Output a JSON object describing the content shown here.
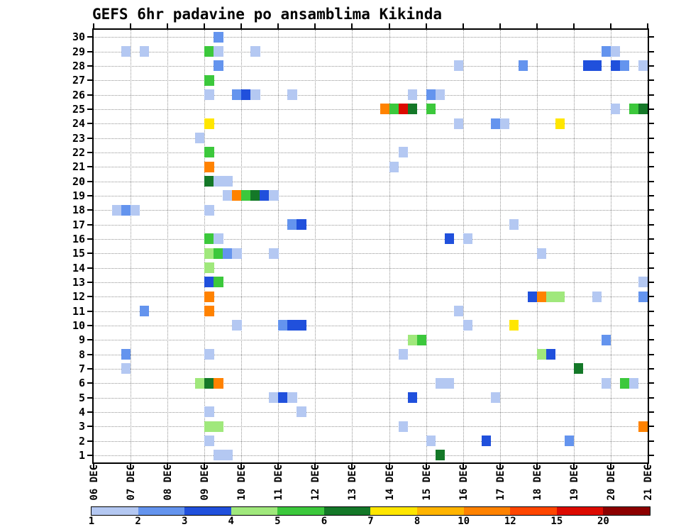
{
  "title": "GEFS 6hr padavine po ansamblima Kikinda",
  "chart_data": {
    "type": "heatmap",
    "title": "GEFS 6hr padavine po ansamblima Kikinda",
    "description": "6-hourly precipitation per GEFS ensemble member for Kikinda; x = time (6hr steps), y = ensemble member 1-30, color = precipitation bin",
    "x_labels": [
      "06 DEC",
      "07 DEC",
      "08 DEC",
      "09 DEC",
      "10 DEC",
      "11 DEC",
      "12 DEC",
      "13 DEC",
      "14 DEC",
      "15 DEC",
      "16 DEC",
      "17 DEC",
      "18 DEC",
      "19 DEC",
      "20 DEC",
      "21 DEC"
    ],
    "x_steps_per_day": 4,
    "y_min": 1,
    "y_max": 30,
    "grid": "dotted",
    "legend": {
      "tick_labels": [
        "1",
        "2",
        "3",
        "4",
        "5",
        "6",
        "7",
        "8",
        "10",
        "12",
        "15",
        "20"
      ],
      "colors": [
        "#b4c8f2",
        "#6494ee",
        "#2050dc",
        "#a0e87c",
        "#3cc83c",
        "#147828",
        "#ffe600",
        "#ffb400",
        "#ff8200",
        "#ff4600",
        "#dc0a00",
        "#8c0000"
      ]
    },
    "cell_encoding": "[six_hour_step_from_06DEC, ensemble_member, color_level_1_to_12]",
    "cells": [
      [
        13,
        30,
        2
      ],
      [
        3,
        29,
        1
      ],
      [
        5,
        29,
        1
      ],
      [
        12,
        29,
        5
      ],
      [
        13,
        29,
        1
      ],
      [
        17,
        29,
        1
      ],
      [
        55,
        29,
        2
      ],
      [
        56,
        29,
        1
      ],
      [
        13,
        28,
        2
      ],
      [
        39,
        28,
        1
      ],
      [
        46,
        28,
        2
      ],
      [
        53,
        28,
        3
      ],
      [
        54,
        28,
        3
      ],
      [
        56,
        28,
        3
      ],
      [
        57,
        28,
        2
      ],
      [
        59,
        28,
        1
      ],
      [
        12,
        27,
        5
      ],
      [
        12,
        26,
        1
      ],
      [
        15,
        26,
        2
      ],
      [
        16,
        26,
        3
      ],
      [
        17,
        26,
        1
      ],
      [
        21,
        26,
        1
      ],
      [
        34,
        26,
        1
      ],
      [
        36,
        26,
        2
      ],
      [
        37,
        26,
        1
      ],
      [
        31,
        25,
        9
      ],
      [
        32,
        25,
        5
      ],
      [
        33,
        25,
        11
      ],
      [
        34,
        25,
        6
      ],
      [
        36,
        25,
        5
      ],
      [
        56,
        25,
        1
      ],
      [
        58,
        25,
        5
      ],
      [
        59,
        25,
        6
      ],
      [
        12,
        24,
        7
      ],
      [
        39,
        24,
        1
      ],
      [
        43,
        24,
        2
      ],
      [
        44,
        24,
        1
      ],
      [
        50,
        24,
        7
      ],
      [
        11,
        23,
        1
      ],
      [
        12,
        22,
        5
      ],
      [
        33,
        22,
        1
      ],
      [
        12,
        21,
        9
      ],
      [
        32,
        21,
        1
      ],
      [
        12,
        20,
        6
      ],
      [
        13,
        20,
        1
      ],
      [
        14,
        20,
        1
      ],
      [
        14,
        19,
        1
      ],
      [
        15,
        19,
        9
      ],
      [
        16,
        19,
        5
      ],
      [
        17,
        19,
        6
      ],
      [
        18,
        19,
        3
      ],
      [
        19,
        19,
        1
      ],
      [
        2,
        18,
        1
      ],
      [
        3,
        18,
        2
      ],
      [
        4,
        18,
        1
      ],
      [
        12,
        18,
        1
      ],
      [
        21,
        17,
        2
      ],
      [
        22,
        17,
        3
      ],
      [
        45,
        17,
        1
      ],
      [
        12,
        16,
        5
      ],
      [
        13,
        16,
        1
      ],
      [
        38,
        16,
        3
      ],
      [
        40,
        16,
        1
      ],
      [
        12,
        15,
        4
      ],
      [
        13,
        15,
        5
      ],
      [
        14,
        15,
        2
      ],
      [
        15,
        15,
        1
      ],
      [
        19,
        15,
        1
      ],
      [
        48,
        15,
        1
      ],
      [
        12,
        14,
        4
      ],
      [
        12,
        13,
        3
      ],
      [
        13,
        13,
        5
      ],
      [
        59,
        13,
        1
      ],
      [
        12,
        12,
        9
      ],
      [
        47,
        12,
        3
      ],
      [
        48,
        12,
        9
      ],
      [
        49,
        12,
        4
      ],
      [
        50,
        12,
        4
      ],
      [
        54,
        12,
        1
      ],
      [
        59,
        12,
        2
      ],
      [
        5,
        11,
        2
      ],
      [
        12,
        11,
        9
      ],
      [
        39,
        11,
        1
      ],
      [
        15,
        10,
        1
      ],
      [
        20,
        10,
        2
      ],
      [
        21,
        10,
        3
      ],
      [
        22,
        10,
        3
      ],
      [
        40,
        10,
        1
      ],
      [
        45,
        10,
        7
      ],
      [
        34,
        9,
        4
      ],
      [
        35,
        9,
        5
      ],
      [
        55,
        9,
        2
      ],
      [
        3,
        8,
        2
      ],
      [
        12,
        8,
        1
      ],
      [
        33,
        8,
        1
      ],
      [
        48,
        8,
        4
      ],
      [
        49,
        8,
        3
      ],
      [
        3,
        7,
        1
      ],
      [
        52,
        7,
        6
      ],
      [
        11,
        6,
        4
      ],
      [
        12,
        6,
        6
      ],
      [
        13,
        6,
        9
      ],
      [
        37,
        6,
        1
      ],
      [
        38,
        6,
        1
      ],
      [
        55,
        6,
        1
      ],
      [
        57,
        6,
        5
      ],
      [
        58,
        6,
        1
      ],
      [
        19,
        5,
        1
      ],
      [
        20,
        5,
        3
      ],
      [
        21,
        5,
        1
      ],
      [
        34,
        5,
        3
      ],
      [
        43,
        5,
        1
      ],
      [
        12,
        4,
        1
      ],
      [
        22,
        4,
        1
      ],
      [
        12,
        3,
        4
      ],
      [
        13,
        3,
        4
      ],
      [
        33,
        3,
        1
      ],
      [
        59,
        3,
        9
      ],
      [
        12,
        2,
        1
      ],
      [
        36,
        2,
        1
      ],
      [
        42,
        2,
        3
      ],
      [
        51,
        2,
        2
      ],
      [
        13,
        1,
        1
      ],
      [
        14,
        1,
        1
      ],
      [
        37,
        1,
        6
      ]
    ]
  }
}
